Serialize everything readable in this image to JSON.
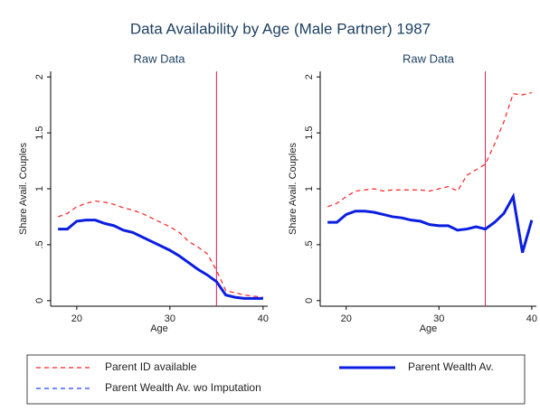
{
  "title": "Data Availability by Age (Male Partner) 1987",
  "chart_data": [
    {
      "type": "line",
      "title": "Raw Data",
      "x_label": "Age",
      "y_label": "Share Avail. Couples",
      "x": [
        18,
        19,
        20,
        21,
        22,
        23,
        24,
        25,
        26,
        27,
        28,
        29,
        30,
        31,
        32,
        33,
        34,
        35,
        36,
        37,
        38,
        39,
        40
      ],
      "series": [
        {
          "name": "Parent ID available",
          "color": "#ff2020",
          "style": "dashed",
          "values": [
            0.75,
            0.78,
            0.84,
            0.87,
            0.89,
            0.88,
            0.86,
            0.83,
            0.81,
            0.78,
            0.74,
            0.7,
            0.66,
            0.61,
            0.53,
            0.48,
            0.42,
            0.27,
            0.09,
            0.07,
            0.05,
            0.04,
            0.03
          ]
        },
        {
          "name": "Parent Wealth Av. wo Imputation",
          "color": "#2040ff",
          "style": "dashed",
          "values": [
            0.64,
            0.64,
            0.71,
            0.72,
            0.72,
            0.69,
            0.67,
            0.63,
            0.61,
            0.57,
            0.53,
            0.49,
            0.45,
            0.4,
            0.34,
            0.28,
            0.23,
            0.17,
            0.05,
            0.03,
            0.02,
            0.02,
            0.02
          ]
        },
        {
          "name": "Parent Wealth Av.",
          "color": "#0a1ee0",
          "style": "solid",
          "values": [
            0.64,
            0.64,
            0.71,
            0.72,
            0.72,
            0.69,
            0.67,
            0.63,
            0.61,
            0.57,
            0.53,
            0.49,
            0.45,
            0.4,
            0.34,
            0.28,
            0.23,
            0.17,
            0.05,
            0.03,
            0.02,
            0.02,
            0.02
          ]
        }
      ],
      "xlim": [
        17.2,
        40.5
      ],
      "ylim": [
        -0.05,
        2.05
      ],
      "xticks": [
        20,
        30,
        40
      ],
      "yticks": [
        0,
        {
          "value": 0.5,
          "label": ".5"
        },
        1,
        1.5,
        2
      ],
      "vline": 35,
      "vline_color": "#c0205a"
    },
    {
      "type": "line",
      "title": "Raw Data",
      "x_label": "Age",
      "y_label": "Share Avail. Couples",
      "x": [
        18,
        19,
        20,
        21,
        22,
        23,
        24,
        25,
        26,
        27,
        28,
        29,
        30,
        31,
        32,
        33,
        34,
        35,
        36,
        37,
        38,
        39,
        40
      ],
      "series": [
        {
          "name": "Parent ID available",
          "color": "#ff2020",
          "style": "dashed",
          "values": [
            0.84,
            0.87,
            0.93,
            0.98,
            0.99,
            1.0,
            0.98,
            0.99,
            0.99,
            0.99,
            0.99,
            0.98,
            1.0,
            1.02,
            0.98,
            1.12,
            1.17,
            1.22,
            1.4,
            1.6,
            1.85,
            1.84,
            1.86
          ]
        },
        {
          "name": "Parent Wealth Av. wo Imputation",
          "color": "#2040ff",
          "style": "dashed",
          "values": [
            0.7,
            0.7,
            0.77,
            0.8,
            0.8,
            0.79,
            0.77,
            0.75,
            0.74,
            0.72,
            0.71,
            0.68,
            0.67,
            0.67,
            0.63,
            0.64,
            0.66,
            0.64,
            0.7,
            0.78,
            0.93,
            0.43,
            0.72
          ]
        },
        {
          "name": "Parent Wealth Av.",
          "color": "#0a1ee0",
          "style": "solid",
          "values": [
            0.7,
            0.7,
            0.77,
            0.8,
            0.8,
            0.79,
            0.77,
            0.75,
            0.74,
            0.72,
            0.71,
            0.68,
            0.67,
            0.67,
            0.63,
            0.64,
            0.66,
            0.64,
            0.7,
            0.78,
            0.93,
            0.43,
            0.72
          ]
        }
      ],
      "xlim": [
        17.2,
        40.5
      ],
      "ylim": [
        -0.05,
        2.05
      ],
      "xticks": [
        20,
        30,
        40
      ],
      "yticks": [
        0,
        {
          "value": 0.5,
          "label": ".5"
        },
        1,
        1.5,
        2
      ],
      "vline": 35,
      "vline_color": "#c0205a"
    }
  ]
}
